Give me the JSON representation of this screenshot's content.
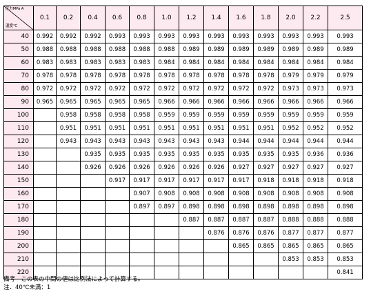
{
  "table": {
    "corner_top_label": "圧力MPa A",
    "corner_bottom_label": "温度℃",
    "pressures": [
      "0.1",
      "0.2",
      "0.4",
      "0.6",
      "0.8",
      "1.0",
      "1.2",
      "1.4",
      "1.6",
      "1.8",
      "2.0",
      "2.2",
      "2.5"
    ],
    "rows": [
      {
        "temp": "40",
        "cells": [
          "0.992",
          "0.992",
          "0.992",
          "0.993",
          "0.993",
          "0.993",
          "0.993",
          "0.993",
          "0.993",
          "0.993",
          "0.993",
          "0.993",
          "0.993"
        ]
      },
      {
        "temp": "50",
        "cells": [
          "0.988",
          "0.988",
          "0.988",
          "0.988",
          "0.988",
          "0.988",
          "0.989",
          "0.989",
          "0.989",
          "0.989",
          "0.989",
          "0.989",
          "0.989"
        ]
      },
      {
        "temp": "60",
        "cells": [
          "0.983",
          "0.983",
          "0.983",
          "0.983",
          "0.983",
          "0.984",
          "0.984",
          "0.984",
          "0.984",
          "0.984",
          "0.984",
          "0.984",
          "0.984"
        ]
      },
      {
        "temp": "70",
        "cells": [
          "0.978",
          "0.978",
          "0.978",
          "0.978",
          "0.978",
          "0.978",
          "0.978",
          "0.978",
          "0.978",
          "0.978",
          "0.979",
          "0.979",
          "0.979"
        ]
      },
      {
        "temp": "80",
        "cells": [
          "0.972",
          "0.972",
          "0.972",
          "0.972",
          "0.972",
          "0.972",
          "0.972",
          "0.972",
          "0.972",
          "0.972",
          "0.973",
          "0.973",
          "0.973"
        ]
      },
      {
        "temp": "90",
        "cells": [
          "0.965",
          "0.965",
          "0.965",
          "0.965",
          "0.965",
          "0.966",
          "0.966",
          "0.966",
          "0.966",
          "0.966",
          "0.966",
          "0.966",
          "0.966"
        ]
      },
      {
        "temp": "100",
        "cells": [
          "",
          "0.958",
          "0.958",
          "0.958",
          "0.958",
          "0.959",
          "0.959",
          "0.959",
          "0.959",
          "0.959",
          "0.959",
          "0.959",
          "0.959"
        ]
      },
      {
        "temp": "110",
        "cells": [
          "",
          "0.951",
          "0.951",
          "0.951",
          "0.951",
          "0.951",
          "0.951",
          "0.951",
          "0.951",
          "0.951",
          "0.952",
          "0.952",
          "0.952"
        ]
      },
      {
        "temp": "120",
        "cells": [
          "",
          "0.943",
          "0.943",
          "0.943",
          "0.943",
          "0.943",
          "0.943",
          "0.943",
          "0.944",
          "0.944",
          "0.944",
          "0.944",
          "0.944"
        ]
      },
      {
        "temp": "130",
        "cells": [
          "",
          "",
          "0.935",
          "0.935",
          "0.935",
          "0.935",
          "0.935",
          "0.935",
          "0.935",
          "0.935",
          "0.935",
          "0.936",
          "0.936"
        ]
      },
      {
        "temp": "140",
        "cells": [
          "",
          "",
          "0.926",
          "0.926",
          "0.926",
          "0.926",
          "0.926",
          "0.926",
          "0.927",
          "0.927",
          "0.927",
          "0.927",
          "0.927"
        ]
      },
      {
        "temp": "150",
        "cells": [
          "",
          "",
          "",
          "0.917",
          "0.917",
          "0.917",
          "0.917",
          "0.917",
          "0.917",
          "0.918",
          "0.918",
          "0.918",
          "0.918"
        ]
      },
      {
        "temp": "160",
        "cells": [
          "",
          "",
          "",
          "",
          "0.907",
          "0.908",
          "0.908",
          "0.908",
          "0.908",
          "0.908",
          "0.908",
          "0.908",
          "0.908"
        ]
      },
      {
        "temp": "170",
        "cells": [
          "",
          "",
          "",
          "",
          "0.897",
          "0.897",
          "0.898",
          "0.898",
          "0.898",
          "0.898",
          "0.898",
          "0.898",
          "0.898"
        ]
      },
      {
        "temp": "180",
        "cells": [
          "",
          "",
          "",
          "",
          "",
          "",
          "0.887",
          "0.887",
          "0.887",
          "0.887",
          "0.888",
          "0.888",
          "0.888"
        ]
      },
      {
        "temp": "190",
        "cells": [
          "",
          "",
          "",
          "",
          "",
          "",
          "",
          "0.876",
          "0.876",
          "0.876",
          "0.877",
          "0.877",
          "0.877"
        ]
      },
      {
        "temp": "200",
        "cells": [
          "",
          "",
          "",
          "",
          "",
          "",
          "",
          "",
          "0.865",
          "0.865",
          "0.865",
          "0.865",
          "0.865"
        ]
      },
      {
        "temp": "210",
        "cells": [
          "",
          "",
          "",
          "",
          "",
          "",
          "",
          "",
          "",
          "",
          "0.853",
          "0.853",
          "0.853"
        ]
      },
      {
        "temp": "220",
        "cells": [
          "",
          "",
          "",
          "",
          "",
          "",
          "",
          "",
          "",
          "",
          "",
          "",
          "0.841"
        ]
      }
    ]
  },
  "notes": {
    "remark": "備考　この表の中間の値は比例法によって計算する。",
    "footnote": "注．40℃未満：1"
  }
}
